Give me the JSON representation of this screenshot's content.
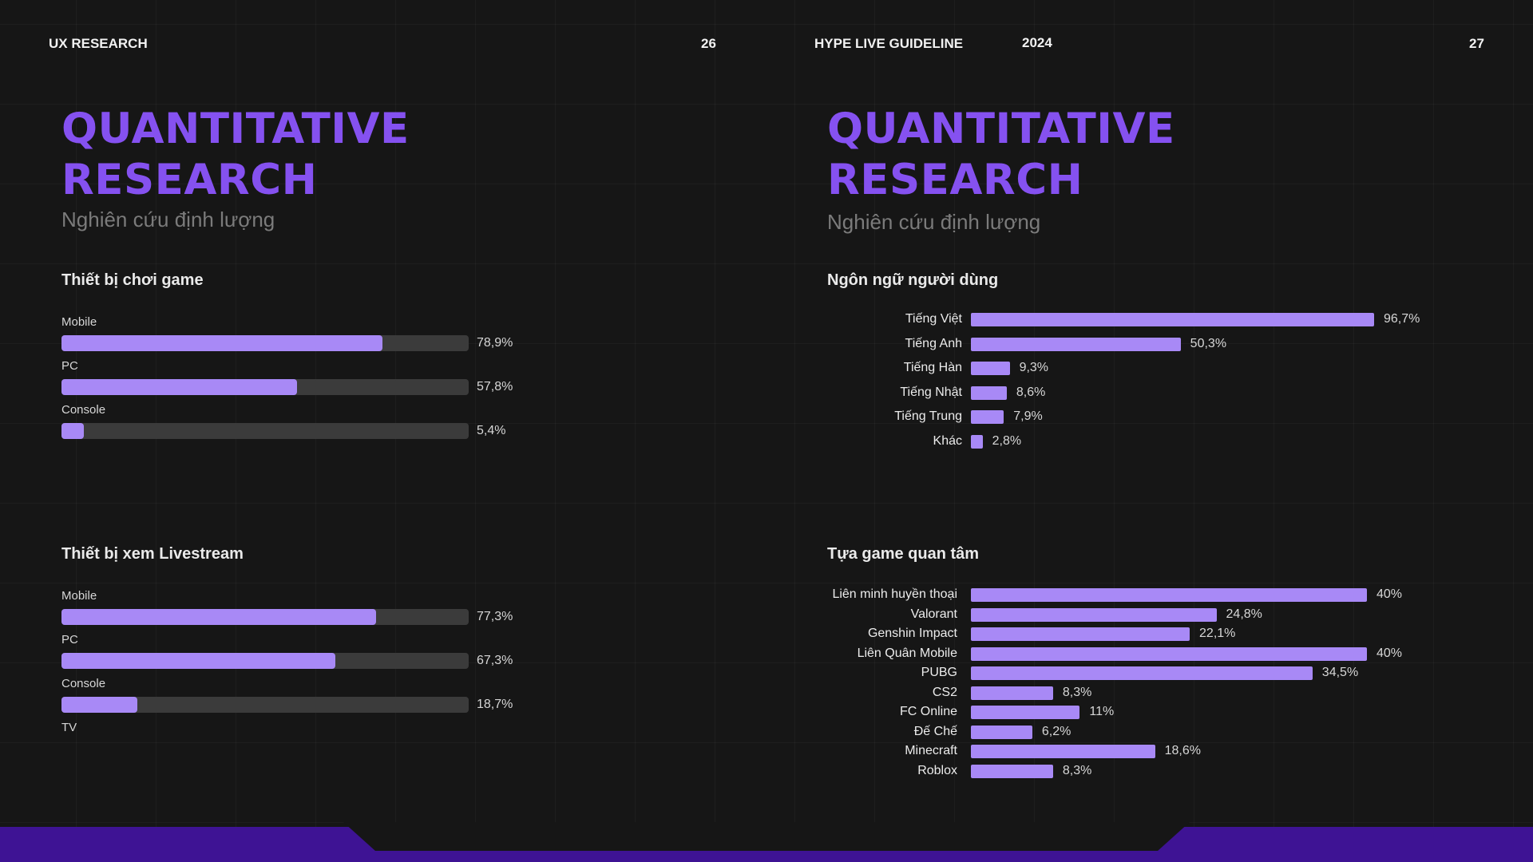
{
  "header": {
    "left_title": "UX RESEARCH",
    "left_page": "26",
    "right_title": "HYPE LIVE GUIDELINE",
    "year": "2024",
    "right_page": "27"
  },
  "left": {
    "title_line1": "QUANTITATIVE",
    "title_line2": "RESEARCH",
    "subtitle": "Nghiên cứu định lượng"
  },
  "right": {
    "title_line1": "QUANTITATIVE",
    "title_line2": "RESEARCH",
    "subtitle": "Nghiên cứu định lượng"
  },
  "colors": {
    "accent": "#8551f0",
    "bar": "#a889f6",
    "track": "#3b3b3b",
    "footer": "#3e1394"
  },
  "chart_data": [
    {
      "type": "bar",
      "title": "Thiết bị chơi game",
      "categories": [
        "Mobile",
        "PC",
        "Console"
      ],
      "values": [
        78.9,
        57.8,
        5.4
      ],
      "value_labels": [
        "78,9%",
        "57,8%",
        "5,4%"
      ],
      "ylim": [
        0,
        100
      ]
    },
    {
      "type": "bar",
      "title": "Thiết bị xem Livestream",
      "categories": [
        "Mobile",
        "PC",
        "Console",
        "TV"
      ],
      "values": [
        77.3,
        67.3,
        18.7,
        null
      ],
      "value_labels": [
        "77,3%",
        "67,3%",
        "18,7%",
        ""
      ],
      "ylim": [
        0,
        100
      ]
    },
    {
      "type": "bar",
      "title": "Ngôn ngữ người dùng",
      "categories": [
        "Tiếng Việt",
        "Tiếng Anh",
        "Tiếng Hàn",
        "Tiếng Nhật",
        "Tiếng Trung",
        "Khác"
      ],
      "values": [
        96.7,
        50.3,
        9.3,
        8.6,
        7.9,
        2.8
      ],
      "value_labels": [
        "96,7%",
        "50,3%",
        "9,3%",
        "8,6%",
        "7,9%",
        "2,8%"
      ]
    },
    {
      "type": "bar",
      "title": "Tựa game quan tâm",
      "categories": [
        "Liên minh huyền thoại",
        "Valorant",
        "Genshin Impact",
        "Liên Quân Mobile",
        "PUBG",
        "CS2",
        "FC Online",
        "Đế Chế",
        "Minecraft",
        "Roblox"
      ],
      "values": [
        40,
        24.8,
        22.1,
        40,
        34.5,
        8.3,
        11,
        6.2,
        18.6,
        8.3
      ],
      "value_labels": [
        "40%",
        "24,8%",
        "22,1%",
        "40%",
        "34,5%",
        "8,3%",
        "11%",
        "6,2%",
        "18,6%",
        "8,3%"
      ]
    }
  ]
}
